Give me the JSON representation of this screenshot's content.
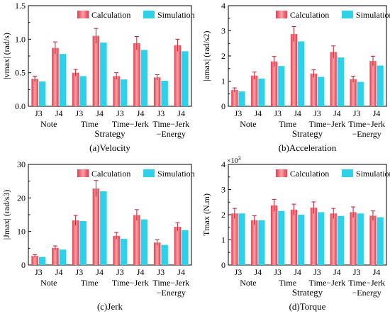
{
  "colors": {
    "calculation": "#e8394a",
    "calculation_light": "#f6a3a9",
    "simulation": "#2fd0ea",
    "error_bar": "#b3202e",
    "axis": "#000000"
  },
  "chart_data": [
    {
      "type": "bar",
      "caption": "(a)Velocity",
      "ylabel": "|vmax| (rad/s)",
      "xlabel": "Strategy",
      "ylim": [
        0,
        1.5
      ],
      "yticks": [
        "0.0",
        "0.5",
        "1.0",
        "1.5"
      ],
      "exponent_label": "",
      "legend": {
        "placement": "top",
        "entries": [
          "Calculation",
          "Simulation"
        ]
      },
      "joints": [
        "J3",
        "J4"
      ],
      "groups": [
        "Note",
        "Time",
        "Time−Jerk",
        "Time−Jerk\n−Energy"
      ],
      "series": [
        {
          "name": "Calculation",
          "values": [
            [
              0.41,
              0.87
            ],
            [
              0.5,
              1.05
            ],
            [
              0.45,
              0.94
            ],
            [
              0.43,
              0.91
            ]
          ],
          "errors": [
            [
              0.04,
              0.09
            ],
            [
              0.05,
              0.11
            ],
            [
              0.05,
              0.1
            ],
            [
              0.04,
              0.09
            ]
          ]
        },
        {
          "name": "Simulation",
          "values": [
            [
              0.37,
              0.78
            ],
            [
              0.45,
              0.95
            ],
            [
              0.4,
              0.84
            ],
            [
              0.38,
              0.82
            ]
          ]
        }
      ]
    },
    {
      "type": "bar",
      "caption": "(b)Acceleration",
      "ylabel": "|amax| (rad/s2)",
      "xlabel": "Strategy",
      "ylim": [
        0,
        4
      ],
      "yticks": [
        "0",
        "1",
        "2",
        "3",
        "4"
      ],
      "exponent_label": "",
      "legend": {
        "placement": "top",
        "entries": [
          "Calculation",
          "Simulation"
        ]
      },
      "joints": [
        "J3",
        "J4"
      ],
      "groups": [
        "Note",
        "Time",
        "Time−Jerk",
        "Time−Jerk\n−Energy"
      ],
      "series": [
        {
          "name": "Calculation",
          "values": [
            [
              0.65,
              1.22
            ],
            [
              1.78,
              2.87
            ],
            [
              1.3,
              2.16
            ],
            [
              1.08,
              1.8
            ]
          ],
          "errors": [
            [
              0.08,
              0.14
            ],
            [
              0.2,
              0.3
            ],
            [
              0.15,
              0.24
            ],
            [
              0.12,
              0.19
            ]
          ]
        },
        {
          "name": "Simulation",
          "values": [
            [
              0.59,
              1.1
            ],
            [
              1.6,
              2.58
            ],
            [
              1.17,
              1.94
            ],
            [
              0.97,
              1.62
            ]
          ]
        }
      ]
    },
    {
      "type": "bar",
      "caption": "(c)Jerk",
      "ylabel": "|Jmax| (rad/s3)",
      "xlabel": "",
      "ylim": [
        0,
        30
      ],
      "yticks": [
        "0",
        "10",
        "20",
        "30"
      ],
      "exponent_label": "",
      "legend": {
        "placement": "top",
        "entries": [
          "Calculation",
          "Simulation"
        ]
      },
      "joints": [
        "J3",
        "J4"
      ],
      "groups": [
        "Note",
        "Time",
        "Time−Jerk",
        "Time−Jerk\n−Energy"
      ],
      "series": [
        {
          "name": "Calculation",
          "values": [
            [
              2.7,
              5.1
            ],
            [
              13.3,
              22.8
            ],
            [
              8.7,
              14.9
            ],
            [
              6.7,
              11.4
            ]
          ],
          "errors": [
            [
              0.4,
              0.6
            ],
            [
              1.5,
              2.4
            ],
            [
              1.0,
              1.6
            ],
            [
              0.8,
              1.2
            ]
          ]
        },
        {
          "name": "Simulation",
          "values": [
            [
              2.4,
              4.6
            ],
            [
              13.1,
              22.0
            ],
            [
              7.8,
              13.6
            ],
            [
              6.0,
              10.4
            ]
          ]
        }
      ]
    },
    {
      "type": "bar",
      "caption": "(d)Torque",
      "ylabel": "Tmax (N.m)",
      "xlabel": "Strategy",
      "ylim": [
        0,
        4
      ],
      "yticks": [
        "0",
        "1",
        "2",
        "3",
        "4"
      ],
      "exponent_label": "×10",
      "exponent_power": "3",
      "legend": {
        "placement": "top",
        "entries": [
          "Calculation",
          "Simulation"
        ]
      },
      "joints": [
        "J3",
        "J4"
      ],
      "groups": [
        "Note",
        "Time",
        "Time−Jerk",
        "Time−Jerk\n−Energy"
      ],
      "series": [
        {
          "name": "Calculation",
          "values": [
            [
              2.05,
              1.78
            ],
            [
              2.37,
              2.2
            ],
            [
              2.28,
              2.05
            ],
            [
              2.1,
              1.96
            ]
          ],
          "errors": [
            [
              0.2,
              0.18
            ],
            [
              0.24,
              0.22
            ],
            [
              0.23,
              0.2
            ],
            [
              0.21,
              0.19
            ]
          ]
        },
        {
          "name": "Simulation",
          "values": [
            [
              2.05,
              1.78
            ],
            [
              2.15,
              2.0
            ],
            [
              2.1,
              1.95
            ],
            [
              2.05,
              1.9
            ]
          ]
        }
      ]
    }
  ]
}
